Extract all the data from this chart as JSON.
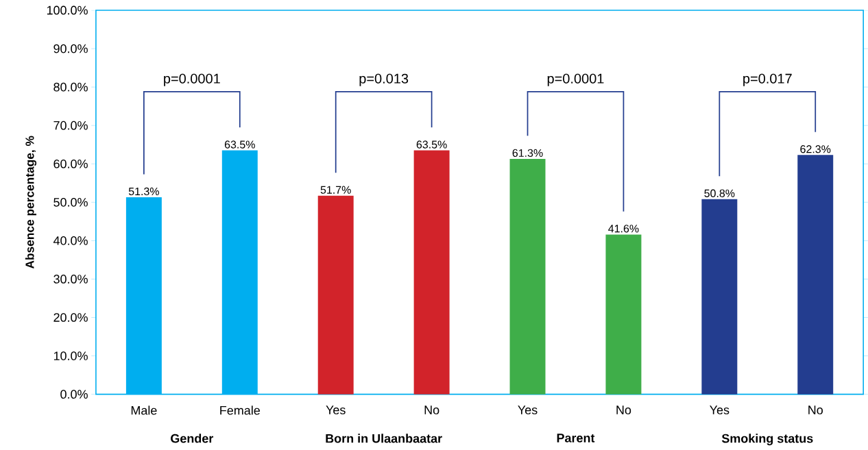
{
  "chart_data": {
    "type": "bar",
    "ylabel": "Absence percentage, %",
    "categories": [
      "Male",
      "Female",
      "Yes",
      "No",
      "Yes",
      "No",
      "Yes",
      "No"
    ],
    "values": [
      51.3,
      63.5,
      51.7,
      63.5,
      61.3,
      41.6,
      50.8,
      62.3
    ],
    "value_labels": [
      "51.3%",
      "63.5%",
      "51.7%",
      "63.5%",
      "61.3%",
      "41.6%",
      "50.8%",
      "62.3%"
    ],
    "colors": [
      "#00aeef",
      "#00aeef",
      "#d2232a",
      "#d2232a",
      "#3fae49",
      "#3fae49",
      "#233d8f",
      "#233d8f"
    ],
    "ylim": [
      0,
      100
    ],
    "yticks": [
      {
        "value": 0,
        "label": "0.0%"
      },
      {
        "value": 10,
        "label": "10.0%"
      },
      {
        "value": 20,
        "label": "20.0%"
      },
      {
        "value": 30,
        "label": "30.0%"
      },
      {
        "value": 40,
        "label": "40.0%"
      },
      {
        "value": 50,
        "label": "50.0%"
      },
      {
        "value": 60,
        "label": "60.0%"
      },
      {
        "value": 70,
        "label": "70.0%"
      },
      {
        "value": 80,
        "label": "80.0%"
      },
      {
        "value": 90,
        "label": "90.0%"
      },
      {
        "value": 100,
        "label": "100.0%"
      }
    ],
    "annotations": [
      "p=0.0001",
      "p=0.013",
      "p=0.0001",
      "p=0.017",
      "Gender",
      "Born in Ulaanbaatar",
      "Parent",
      "Smoking status"
    ],
    "grid": false
  }
}
